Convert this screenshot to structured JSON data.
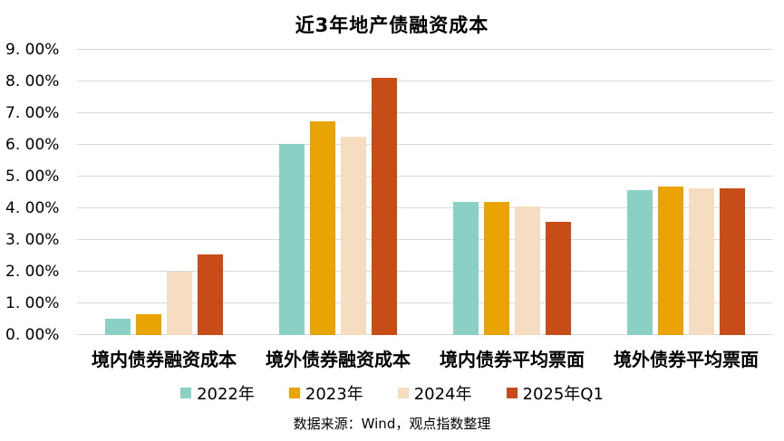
{
  "chart_data": {
    "type": "bar",
    "title": "近3年地产债融资成本",
    "categories": [
      "境内债券融资成本",
      "境外债券融资成本",
      "境内债券平均票面",
      "境外债券平均票面"
    ],
    "series": [
      {
        "name": "2022年",
        "color": "#8BD0C4",
        "values": [
          0.52,
          6.04,
          4.21,
          4.58
        ]
      },
      {
        "name": "2023年",
        "color": "#E9A303",
        "values": [
          0.66,
          6.74,
          4.19,
          4.69
        ]
      },
      {
        "name": "2024年",
        "color": "#F6DCC0",
        "values": [
          2.01,
          6.25,
          4.07,
          4.62
        ]
      },
      {
        "name": "2025年Q1",
        "color": "#C84C18",
        "values": [
          2.54,
          8.11,
          3.56,
          4.64
        ]
      }
    ],
    "ylim": [
      0,
      9
    ],
    "ytick_step": 1,
    "ytick_labels": [
      "0. 00%",
      "1. 00%",
      "2. 00%",
      "3. 00%",
      "4. 00%",
      "5. 00%",
      "6. 00%",
      "7. 00%",
      "8. 00%",
      "9. 00%"
    ],
    "value_unit": "percent",
    "grid": true,
    "gridline_color": "#D9D9D9",
    "legend_position": "bottom",
    "source": "数据来源：Wind，观点指数整理"
  }
}
